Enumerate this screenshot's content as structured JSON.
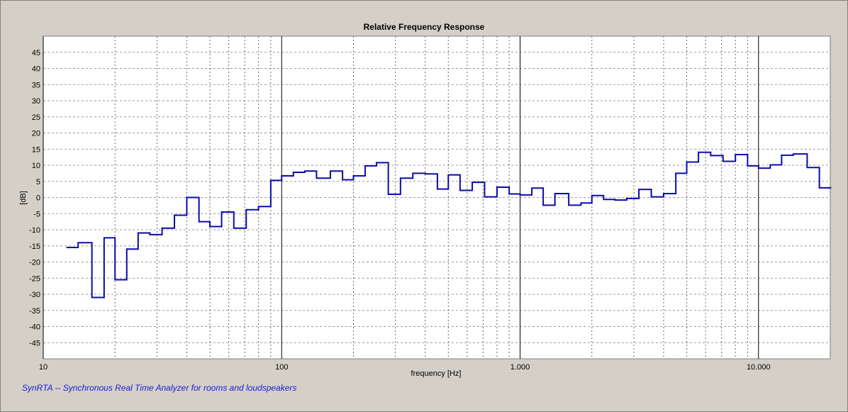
{
  "chart_data": {
    "type": "line",
    "title": "Relative Frequency Response",
    "xlabel": "frequency [Hz]",
    "ylabel": "[dB]",
    "x_scale": "log",
    "xlim": [
      10,
      20000
    ],
    "ylim": [
      -50,
      50
    ],
    "x_ticks": [
      {
        "value": 10,
        "label": "10"
      },
      {
        "value": 100,
        "label": "100"
      },
      {
        "value": 1000,
        "label": "1.000"
      },
      {
        "value": 10000,
        "label": "10.000"
      }
    ],
    "y_ticks": [
      45,
      40,
      35,
      30,
      25,
      20,
      15,
      10,
      5,
      0,
      -5,
      -10,
      -15,
      -20,
      -25,
      -30,
      -35,
      -40,
      -45
    ],
    "grid": true,
    "series": [
      {
        "color": "#0b0ba8",
        "style": "step",
        "x": [
          12.5,
          14,
          16,
          18,
          20,
          22.4,
          25,
          28,
          31.5,
          35.5,
          40,
          45,
          50,
          56,
          63,
          71,
          80,
          90,
          100,
          112,
          125,
          140,
          160,
          180,
          200,
          224,
          250,
          280,
          315,
          355,
          400,
          450,
          500,
          560,
          630,
          710,
          800,
          900,
          1000,
          1120,
          1250,
          1400,
          1600,
          1800,
          2000,
          2240,
          2500,
          2800,
          3150,
          3550,
          4000,
          4500,
          5000,
          5600,
          6300,
          7100,
          8000,
          9000,
          10000,
          11200,
          12500,
          14000,
          16000,
          18000
        ],
        "values": [
          -15.5,
          -14,
          -31,
          -12.5,
          -25.5,
          -16,
          -11,
          -11.5,
          -9.5,
          -5.5,
          0,
          -7.5,
          -9,
          -4.5,
          -9.5,
          -3.8,
          -2.8,
          5.3,
          6.7,
          7.8,
          8.2,
          6,
          8.2,
          5.5,
          6.7,
          9.8,
          10.8,
          1,
          6,
          7.5,
          7.3,
          2.6,
          7,
          2.2,
          4.7,
          0.2,
          3.2,
          1.1,
          0.8,
          2.9,
          -2.4,
          1.2,
          -2.4,
          -1.7,
          0.6,
          -0.6,
          -0.8,
          -0.3,
          2.5,
          0.2,
          1.2,
          7.5,
          11,
          14,
          13,
          11.2,
          13.3,
          9.8,
          9.1,
          10.1,
          13.1,
          13.5,
          9.3,
          3
        ]
      }
    ]
  },
  "footer_text": "SynRTA -- Synchronous Real Time Analyzer for rooms and loudspeakers"
}
